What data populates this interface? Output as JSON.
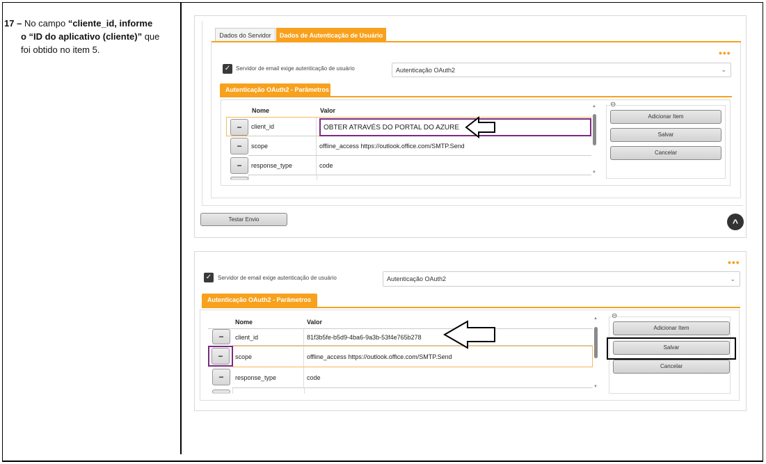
{
  "instruction": {
    "number": "17 –",
    "text_1": "No campo",
    "bold_1": "“cliente_id, informe",
    "bold_2": "o “ID do aplicativo (cliente)”",
    "text_2": "que",
    "text_3": "foi obtido no item 5."
  },
  "panel1": {
    "tabs": [
      "Dados do Servidor",
      "Dados de Autenticação de Usuário"
    ],
    "more": "•••",
    "checkbox_label": "Servidor de email exige autenticação de usuário",
    "checkbox_checked": true,
    "select_value": "Autenticação OAuth2",
    "section_title": "Autenticação OAuth2 - Parâmetros",
    "columns": [
      "Nome",
      "Valor"
    ],
    "rows": [
      {
        "nome": "client_id",
        "valor": "OBTER ATRAVÉS DO PORTAL DO AZURE"
      },
      {
        "nome": "scope",
        "valor": "offline_access https://outlook.office.com/SMTP.Send"
      },
      {
        "nome": "response_type",
        "valor": "code"
      }
    ],
    "buttons": {
      "add": "Adicionar Item",
      "save": "Salvar",
      "cancel": "Cancelar"
    },
    "test_button": "Testar Envio"
  },
  "panel2": {
    "more": "•••",
    "checkbox_label": "Servidor de email exige autenticação de usuário",
    "checkbox_checked": true,
    "select_value": "Autenticação OAuth2",
    "section_title": "Autenticação OAuth2 - Parâmetros",
    "columns": [
      "Nome",
      "Valor"
    ],
    "rows": [
      {
        "nome": "client_id",
        "valor": "81f3b5fe-b5d9-4ba6-9a3b-53f4e765b278"
      },
      {
        "nome": "scope",
        "valor": "offline_access https://outlook.office.com/SMTP.Send"
      },
      {
        "nome": "response_type",
        "valor": "code"
      }
    ],
    "buttons": {
      "add": "Adicionar Item",
      "save": "Salvar",
      "cancel": "Cancelar"
    }
  },
  "colors": {
    "accent": "#f7a11d",
    "highlight": "#7b2a82"
  }
}
